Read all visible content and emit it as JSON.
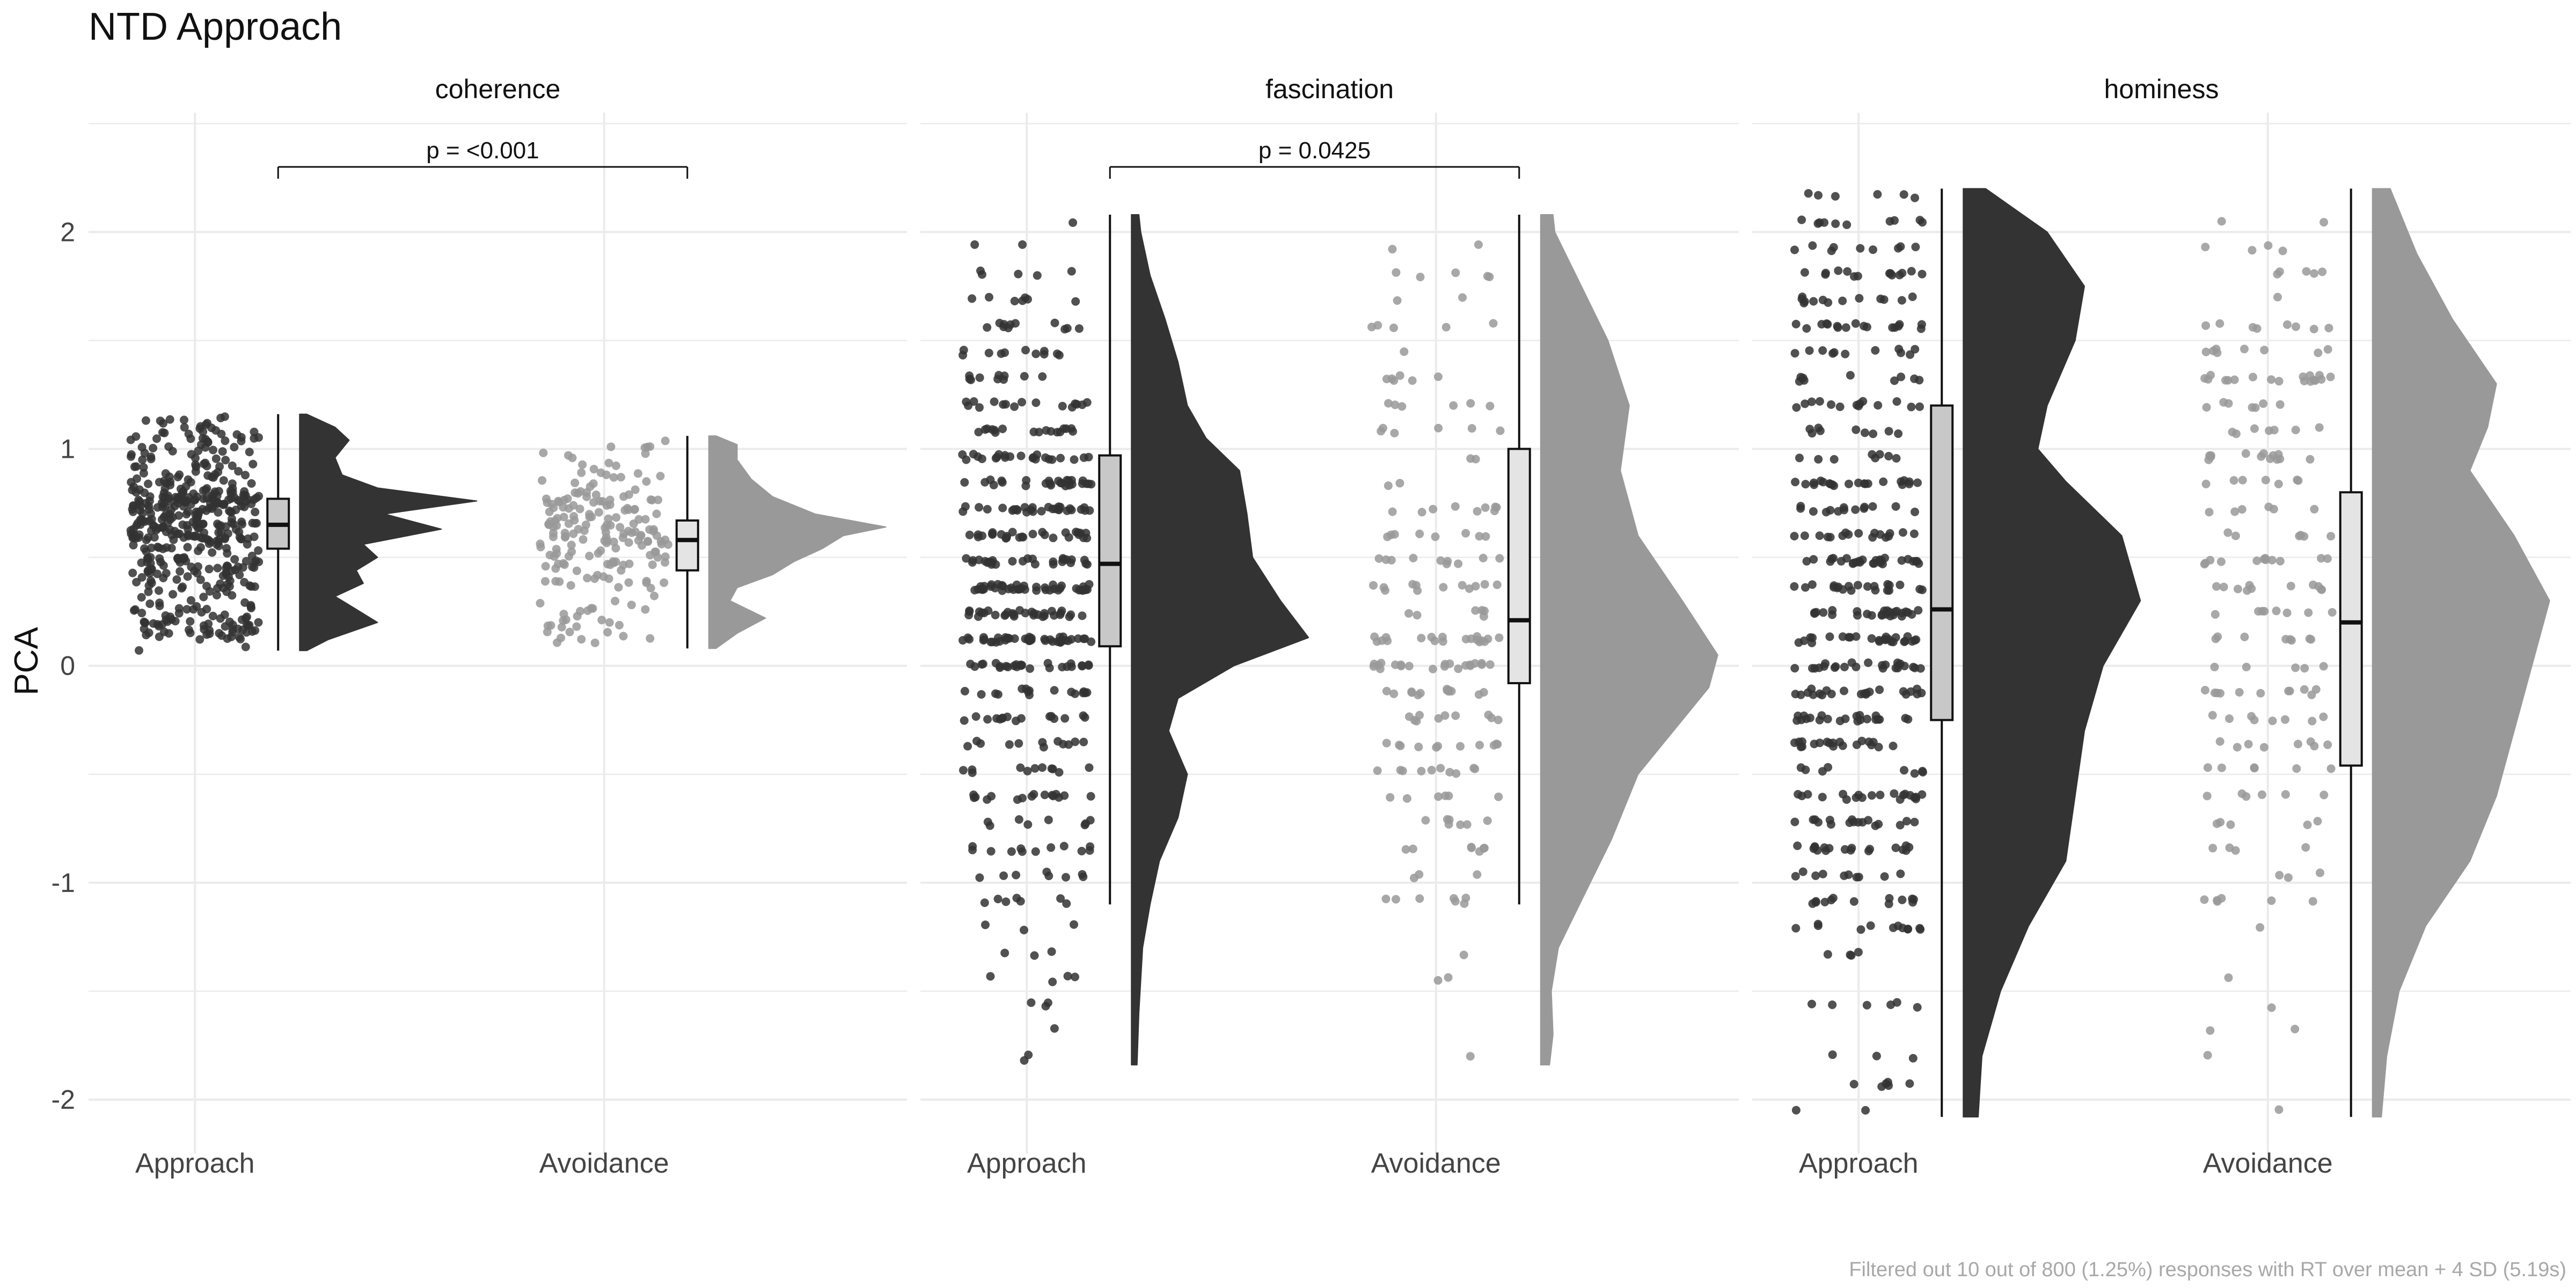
{
  "chart_data": {
    "type": "raincloud",
    "title": "NTD Approach",
    "ylabel": "PCA",
    "xlabel": "",
    "ylim": [
      -2.25,
      2.55
    ],
    "yticks": [
      -2,
      -1,
      0,
      1,
      2
    ],
    "categories": [
      "Approach",
      "Avoidance"
    ],
    "grid": true,
    "legend": "none",
    "caption": "Filtered out 10 out of 800 (1.25%) responses with RT over mean + 4 SD (5.19s)",
    "colors": {
      "Approach": "#333333",
      "Avoidance": "#999999",
      "approach_box_fill": "#c8c8c8",
      "avoidance_box_fill": "#e4e4e4",
      "grid": "#ebebeb"
    },
    "panels": [
      {
        "name": "coherence",
        "comparison": {
          "label": "p = <0.001",
          "y": 2.3
        },
        "groups": [
          {
            "category": "Approach",
            "n_points": 480,
            "min": 0.07,
            "q1": 0.54,
            "median": 0.65,
            "q3": 0.77,
            "max": 1.16,
            "density": [
              [
                0.07,
                0.05
              ],
              [
                0.12,
                0.2
              ],
              [
                0.2,
                0.55
              ],
              [
                0.26,
                0.4
              ],
              [
                0.32,
                0.25
              ],
              [
                0.38,
                0.45
              ],
              [
                0.44,
                0.4
              ],
              [
                0.5,
                0.55
              ],
              [
                0.56,
                0.45
              ],
              [
                0.63,
                1.0
              ],
              [
                0.7,
                0.6
              ],
              [
                0.76,
                1.25
              ],
              [
                0.82,
                0.55
              ],
              [
                0.88,
                0.3
              ],
              [
                0.96,
                0.25
              ],
              [
                1.04,
                0.35
              ],
              [
                1.1,
                0.25
              ],
              [
                1.16,
                0.05
              ]
            ]
          },
          {
            "category": "Avoidance",
            "n_points": 200,
            "min": 0.08,
            "q1": 0.44,
            "median": 0.58,
            "q3": 0.67,
            "max": 1.06,
            "density": [
              [
                0.08,
                0.05
              ],
              [
                0.15,
                0.2
              ],
              [
                0.22,
                0.4
              ],
              [
                0.3,
                0.15
              ],
              [
                0.36,
                0.2
              ],
              [
                0.42,
                0.45
              ],
              [
                0.48,
                0.6
              ],
              [
                0.54,
                0.8
              ],
              [
                0.6,
                0.95
              ],
              [
                0.64,
                1.25
              ],
              [
                0.7,
                0.75
              ],
              [
                0.78,
                0.45
              ],
              [
                0.86,
                0.3
              ],
              [
                0.95,
                0.2
              ],
              [
                1.02,
                0.2
              ],
              [
                1.06,
                0.05
              ]
            ]
          }
        ]
      },
      {
        "name": "fascination",
        "comparison": {
          "label": "p = 0.0425",
          "y": 2.3
        },
        "groups": [
          {
            "category": "Approach",
            "n_points": 480,
            "min": -1.1,
            "q1": 0.09,
            "median": 0.47,
            "q3": 0.97,
            "max": 2.08,
            "density": [
              [
                -1.84,
                0.03
              ],
              [
                -1.6,
                0.04
              ],
              [
                -1.3,
                0.06
              ],
              [
                -1.1,
                0.1
              ],
              [
                -0.9,
                0.15
              ],
              [
                -0.7,
                0.25
              ],
              [
                -0.5,
                0.3
              ],
              [
                -0.3,
                0.2
              ],
              [
                -0.15,
                0.25
              ],
              [
                0.0,
                0.55
              ],
              [
                0.13,
                0.95
              ],
              [
                0.3,
                0.8
              ],
              [
                0.5,
                0.65
              ],
              [
                0.7,
                0.62
              ],
              [
                0.9,
                0.58
              ],
              [
                1.05,
                0.4
              ],
              [
                1.2,
                0.3
              ],
              [
                1.4,
                0.25
              ],
              [
                1.6,
                0.18
              ],
              [
                1.8,
                0.1
              ],
              [
                2.0,
                0.05
              ],
              [
                2.08,
                0.04
              ]
            ]
          },
          {
            "category": "Avoidance",
            "n_points": 200,
            "min": -1.1,
            "q1": -0.08,
            "median": 0.21,
            "q3": 1.0,
            "max": 2.08,
            "density": [
              [
                -1.84,
                0.05
              ],
              [
                -1.7,
                0.07
              ],
              [
                -1.5,
                0.06
              ],
              [
                -1.3,
                0.1
              ],
              [
                -1.1,
                0.22
              ],
              [
                -0.8,
                0.4
              ],
              [
                -0.5,
                0.55
              ],
              [
                -0.3,
                0.75
              ],
              [
                -0.1,
                0.95
              ],
              [
                0.05,
                1.0
              ],
              [
                0.3,
                0.8
              ],
              [
                0.6,
                0.55
              ],
              [
                0.9,
                0.45
              ],
              [
                1.2,
                0.5
              ],
              [
                1.5,
                0.38
              ],
              [
                1.8,
                0.2
              ],
              [
                2.0,
                0.08
              ],
              [
                2.08,
                0.07
              ]
            ]
          }
        ]
      },
      {
        "name": "hominess",
        "comparison": null,
        "groups": [
          {
            "category": "Approach",
            "n_points": 480,
            "min": -2.08,
            "q1": -0.25,
            "median": 0.26,
            "q3": 1.2,
            "max": 2.2,
            "density": [
              [
                -2.08,
                0.08
              ],
              [
                -1.8,
                0.1
              ],
              [
                -1.5,
                0.2
              ],
              [
                -1.2,
                0.35
              ],
              [
                -0.9,
                0.55
              ],
              [
                -0.6,
                0.6
              ],
              [
                -0.3,
                0.65
              ],
              [
                0.0,
                0.75
              ],
              [
                0.3,
                0.95
              ],
              [
                0.6,
                0.85
              ],
              [
                0.85,
                0.55
              ],
              [
                1.0,
                0.4
              ],
              [
                1.2,
                0.45
              ],
              [
                1.5,
                0.6
              ],
              [
                1.75,
                0.65
              ],
              [
                2.0,
                0.45
              ],
              [
                2.2,
                0.12
              ]
            ]
          },
          {
            "category": "Avoidance",
            "n_points": 200,
            "min": -2.08,
            "q1": -0.46,
            "median": 0.2,
            "q3": 0.8,
            "max": 2.2,
            "density": [
              [
                -2.08,
                0.05
              ],
              [
                -1.8,
                0.08
              ],
              [
                -1.5,
                0.15
              ],
              [
                -1.2,
                0.3
              ],
              [
                -0.9,
                0.55
              ],
              [
                -0.6,
                0.7
              ],
              [
                -0.3,
                0.8
              ],
              [
                0.0,
                0.9
              ],
              [
                0.3,
                1.0
              ],
              [
                0.6,
                0.8
              ],
              [
                0.9,
                0.55
              ],
              [
                1.1,
                0.65
              ],
              [
                1.3,
                0.7
              ],
              [
                1.6,
                0.45
              ],
              [
                1.9,
                0.25
              ],
              [
                2.2,
                0.1
              ]
            ]
          }
        ]
      }
    ]
  }
}
